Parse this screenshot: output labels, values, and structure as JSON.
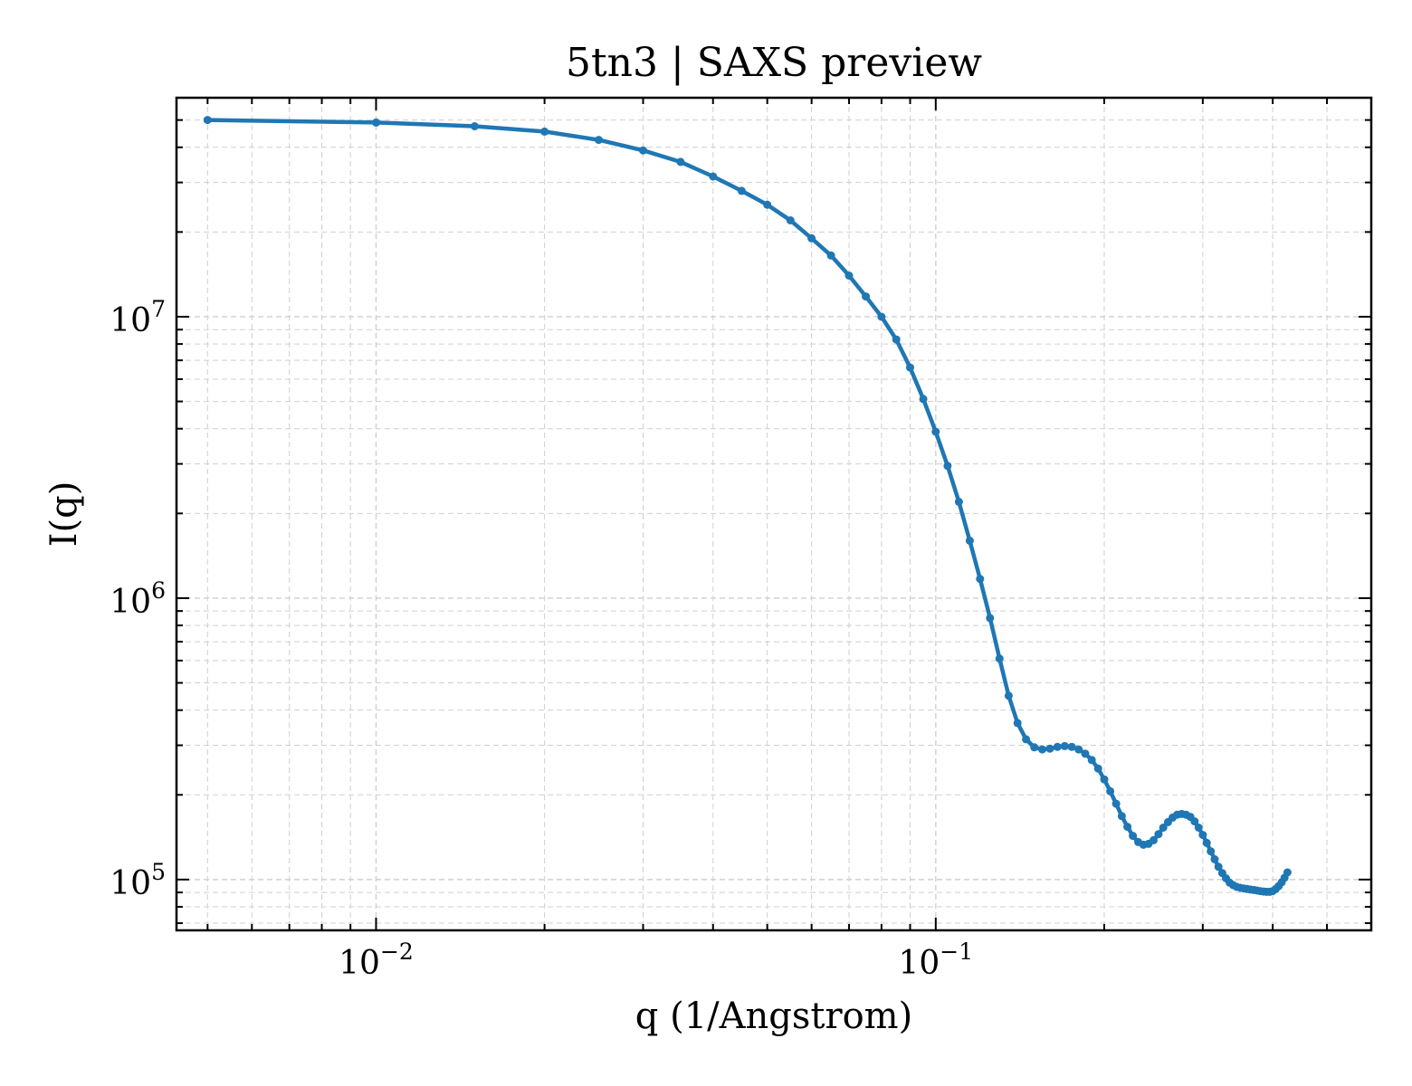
{
  "chart_data": {
    "type": "line",
    "title": "5tn3 | SAXS preview",
    "xlabel": "q (1/Angstrom)",
    "ylabel": "I(q)",
    "xscale": "log",
    "yscale": "log",
    "xlim": [
      0.0044,
      0.6
    ],
    "ylim": [
      66000,
      60000000
    ],
    "grid": true,
    "legend": "none",
    "series": [
      {
        "color": "#1f77b4",
        "marker": "dot",
        "points": [
          [
            0.005,
            50000000
          ],
          [
            0.01,
            49000000
          ],
          [
            0.015,
            47500000
          ],
          [
            0.02,
            45500000
          ],
          [
            0.025,
            42500000
          ],
          [
            0.03,
            39000000
          ],
          [
            0.035,
            35500000
          ],
          [
            0.04,
            31500000
          ],
          [
            0.045,
            28000000
          ],
          [
            0.05,
            25000000
          ],
          [
            0.055,
            22000000
          ],
          [
            0.06,
            19000000
          ],
          [
            0.065,
            16500000
          ],
          [
            0.07,
            14000000
          ],
          [
            0.075,
            11800000
          ],
          [
            0.08,
            10000000
          ],
          [
            0.085,
            8300000
          ],
          [
            0.09,
            6600000
          ],
          [
            0.095,
            5100000
          ],
          [
            0.1,
            3900000
          ],
          [
            0.105,
            2950000
          ],
          [
            0.11,
            2200000
          ],
          [
            0.115,
            1600000
          ],
          [
            0.12,
            1170000
          ],
          [
            0.125,
            850000
          ],
          [
            0.13,
            610000
          ],
          [
            0.135,
            450000
          ],
          [
            0.14,
            360000
          ],
          [
            0.145,
            315000
          ],
          [
            0.15,
            295000
          ],
          [
            0.155,
            290000
          ],
          [
            0.16,
            292000
          ],
          [
            0.165,
            296000
          ],
          [
            0.17,
            298000
          ],
          [
            0.175,
            296000
          ],
          [
            0.18,
            290000
          ],
          [
            0.185,
            280000
          ],
          [
            0.19,
            266000
          ],
          [
            0.195,
            248000
          ],
          [
            0.2,
            227000
          ],
          [
            0.205,
            206000
          ],
          [
            0.21,
            186000
          ],
          [
            0.215,
            168000
          ],
          [
            0.22,
            154000
          ],
          [
            0.225,
            143000
          ],
          [
            0.23,
            136000
          ],
          [
            0.235,
            133000
          ],
          [
            0.24,
            134000
          ],
          [
            0.245,
            138000
          ],
          [
            0.25,
            145000
          ],
          [
            0.255,
            153000
          ],
          [
            0.26,
            160000
          ],
          [
            0.265,
            166000
          ],
          [
            0.27,
            170000
          ],
          [
            0.275,
            171000
          ],
          [
            0.28,
            170000
          ],
          [
            0.285,
            167000
          ],
          [
            0.29,
            161000
          ],
          [
            0.295,
            153000
          ],
          [
            0.3,
            144000
          ],
          [
            0.305,
            135000
          ],
          [
            0.31,
            126000
          ],
          [
            0.315,
            118000
          ],
          [
            0.32,
            111000
          ],
          [
            0.325,
            105500
          ],
          [
            0.33,
            101000
          ],
          [
            0.335,
            97500
          ],
          [
            0.34,
            95500
          ],
          [
            0.345,
            94200
          ],
          [
            0.35,
            93500
          ],
          [
            0.355,
            93000
          ],
          [
            0.36,
            92600
          ],
          [
            0.365,
            92200
          ],
          [
            0.37,
            91800
          ],
          [
            0.375,
            91400
          ],
          [
            0.38,
            91000
          ],
          [
            0.385,
            90700
          ],
          [
            0.39,
            90500
          ],
          [
            0.395,
            90500
          ],
          [
            0.4,
            91000
          ],
          [
            0.405,
            92500
          ],
          [
            0.41,
            94800
          ],
          [
            0.415,
            97800
          ],
          [
            0.42,
            101500
          ],
          [
            0.425,
            106000
          ]
        ]
      }
    ],
    "xticks": [
      {
        "value": 0.01,
        "base": "10",
        "exp": "−2"
      },
      {
        "value": 0.1,
        "base": "10",
        "exp": "−1"
      }
    ],
    "yticks": [
      {
        "value": 100000,
        "base": "10",
        "exp": "5"
      },
      {
        "value": 1000000,
        "base": "10",
        "exp": "6"
      },
      {
        "value": 10000000,
        "base": "10",
        "exp": "7"
      }
    ]
  }
}
